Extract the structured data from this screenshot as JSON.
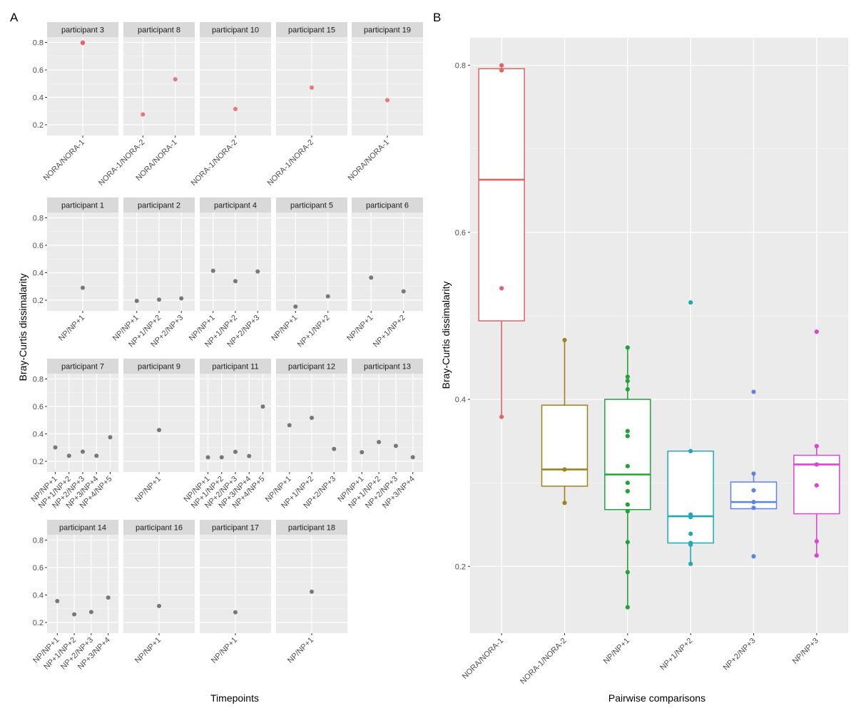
{
  "chart_data": [
    {
      "panel": "A",
      "type": "scatter",
      "faceted": true,
      "xlabel": "Timepoints",
      "ylabel": "Bray-Curtis dissimalarity",
      "ylim": [
        0.122,
        0.839
      ],
      "yticks": [
        0.2,
        0.4,
        0.6,
        0.8
      ],
      "ytick_labels": [
        "0.2",
        "0.4",
        "0.6",
        "0.8"
      ],
      "grid": true,
      "colors": {
        "nora": "#E8585E",
        "np": "#595959"
      },
      "facets": [
        {
          "title": "participant 3",
          "group": "nora",
          "categories": [
            "NORA/NORA-1"
          ],
          "points": [
            {
              "x": "NORA/NORA-1",
              "y": 0.8
            },
            {
              "x": "NORA/NORA-1",
              "y": 0.795
            }
          ]
        },
        {
          "title": "participant 8",
          "group": "nora",
          "categories": [
            "NORA-1/NORA-2",
            "NORA/NORA-1"
          ],
          "points": [
            {
              "x": "NORA-1/NORA-2",
              "y": 0.275
            },
            {
              "x": "NORA/NORA-1",
              "y": 0.532
            }
          ]
        },
        {
          "title": "participant 10",
          "group": "nora",
          "categories": [
            "NORA-1/NORA-2"
          ],
          "points": [
            {
              "x": "NORA-1/NORA-2",
              "y": 0.315
            }
          ]
        },
        {
          "title": "participant 15",
          "group": "nora",
          "categories": [
            "NORA-1/NORA-2"
          ],
          "points": [
            {
              "x": "NORA-1/NORA-2",
              "y": 0.471
            }
          ]
        },
        {
          "title": "participant 19",
          "group": "nora",
          "categories": [
            "NORA/NORA-1"
          ],
          "points": [
            {
              "x": "NORA/NORA-1",
              "y": 0.379
            }
          ]
        },
        {
          "title": "participant 1",
          "group": "np",
          "categories": [
            "NP/NP+1"
          ],
          "points": [
            {
              "x": "NP/NP+1",
              "y": 0.29
            }
          ]
        },
        {
          "title": "participant 2",
          "group": "np",
          "categories": [
            "NP/NP+1",
            "NP+1/NP+2",
            "NP+2/NP+3"
          ],
          "points": [
            {
              "x": "NP/NP+1",
              "y": 0.195
            },
            {
              "x": "NP+1/NP+2",
              "y": 0.204
            },
            {
              "x": "NP+2/NP+3",
              "y": 0.213
            }
          ]
        },
        {
          "title": "participant 4",
          "group": "np",
          "categories": [
            "NP/NP+1",
            "NP+1/NP+2",
            "NP+2/NP+3"
          ],
          "points": [
            {
              "x": "NP/NP+1",
              "y": 0.414
            },
            {
              "x": "NP+1/NP+2",
              "y": 0.338
            },
            {
              "x": "NP+2/NP+3",
              "y": 0.409
            }
          ]
        },
        {
          "title": "participant 5",
          "group": "np",
          "categories": [
            "NP/NP+1",
            "NP+1/NP+2"
          ],
          "points": [
            {
              "x": "NP/NP+1",
              "y": 0.153
            },
            {
              "x": "NP+1/NP+2",
              "y": 0.228
            }
          ]
        },
        {
          "title": "participant 6",
          "group": "np",
          "categories": [
            "NP/NP+1",
            "NP+1/NP+2"
          ],
          "points": [
            {
              "x": "NP/NP+1",
              "y": 0.364
            },
            {
              "x": "NP+1/NP+2",
              "y": 0.264
            }
          ]
        },
        {
          "title": "participant 7",
          "group": "np",
          "categories": [
            "NP/NP+1",
            "NP+1/NP+2",
            "NP+2/NP+3",
            "NP+3/NP+4",
            "NP+4/NP+5"
          ],
          "points": [
            {
              "x": "NP/NP+1",
              "y": 0.301
            },
            {
              "x": "NP+1/NP+2",
              "y": 0.24
            },
            {
              "x": "NP+2/NP+3",
              "y": 0.27
            },
            {
              "x": "NP+3/NP+4",
              "y": 0.24
            },
            {
              "x": "NP+4/NP+5",
              "y": 0.375
            }
          ]
        },
        {
          "title": "participant 9",
          "group": "np",
          "categories": [
            "NP/NP+1"
          ],
          "points": [
            {
              "x": "NP/NP+1",
              "y": 0.428
            }
          ]
        },
        {
          "title": "participant 11",
          "group": "np",
          "categories": [
            "NP/NP+1",
            "NP+1/NP+2",
            "NP+2/NP+3",
            "NP+3/NP+4",
            "NP+4/NP+5"
          ],
          "points": [
            {
              "x": "NP/NP+1",
              "y": 0.229
            },
            {
              "x": "NP+1/NP+2",
              "y": 0.229
            },
            {
              "x": "NP+2/NP+3",
              "y": 0.269
            },
            {
              "x": "NP+3/NP+4",
              "y": 0.238
            },
            {
              "x": "NP+4/NP+5",
              "y": 0.599
            }
          ]
        },
        {
          "title": "participant 12",
          "group": "np",
          "categories": [
            "NP/NP+1",
            "NP+1/NP+2",
            "NP+2/NP+3"
          ],
          "points": [
            {
              "x": "NP/NP+1",
              "y": 0.463
            },
            {
              "x": "NP+1/NP+2",
              "y": 0.517
            },
            {
              "x": "NP+2/NP+3",
              "y": 0.29
            }
          ]
        },
        {
          "title": "participant 13",
          "group": "np",
          "categories": [
            "NP/NP+1",
            "NP+1/NP+2",
            "NP+2/NP+3",
            "NP+3/NP+4"
          ],
          "points": [
            {
              "x": "NP/NP+1",
              "y": 0.266
            },
            {
              "x": "NP+1/NP+2",
              "y": 0.34
            },
            {
              "x": "NP+2/NP+3",
              "y": 0.312
            },
            {
              "x": "NP+3/NP+4",
              "y": 0.23
            }
          ]
        },
        {
          "title": "participant 14",
          "group": "np",
          "categories": [
            "NP/NP+1",
            "NP+1/NP+2",
            "NP+2/NP+3",
            "NP+3/NP+4"
          ],
          "points": [
            {
              "x": "NP/NP+1",
              "y": 0.356
            },
            {
              "x": "NP+1/NP+2",
              "y": 0.259
            },
            {
              "x": "NP+2/NP+3",
              "y": 0.276
            },
            {
              "x": "NP+3/NP+4",
              "y": 0.381
            }
          ]
        },
        {
          "title": "participant 16",
          "group": "np",
          "categories": [
            "NP/NP+1"
          ],
          "points": [
            {
              "x": "NP/NP+1",
              "y": 0.32
            }
          ]
        },
        {
          "title": "participant 17",
          "group": "np",
          "categories": [
            "NP/NP+1"
          ],
          "points": [
            {
              "x": "NP/NP+1",
              "y": 0.274
            }
          ]
        },
        {
          "title": "participant 18",
          "group": "np",
          "categories": [
            "NP/NP+1"
          ],
          "points": [
            {
              "x": "NP/NP+1",
              "y": 0.424
            }
          ]
        }
      ]
    },
    {
      "panel": "B",
      "type": "box",
      "xlabel": "Pairwise comparisons",
      "ylabel": "Bray-Curtis dissimalarity",
      "ylim": [
        0.12,
        0.833
      ],
      "yticks": [
        0.2,
        0.4,
        0.6,
        0.8
      ],
      "ytick_labels": [
        "0.2",
        "0.4",
        "0.6",
        "0.8"
      ],
      "grid": true,
      "categories": [
        "NORA/NORA-1",
        "NORA-1/NORA-2",
        "NP/NP+1",
        "NP+1/NP+2",
        "NP+2/NP+3",
        "NP/NP+3"
      ],
      "series": [
        {
          "name": "NORA/NORA-1",
          "color": "#E06666",
          "q1": 0.494,
          "median": 0.663,
          "q3": 0.796,
          "whisker_low": 0.379,
          "whisker_high": 0.8,
          "points": [
            0.8,
            0.794,
            0.533,
            0.379
          ]
        },
        {
          "name": "NORA-1/NORA-2",
          "color": "#9A8420",
          "q1": 0.296,
          "median": 0.316,
          "q3": 0.393,
          "whisker_low": 0.276,
          "whisker_high": 0.471,
          "points": [
            0.471,
            0.316,
            0.276
          ]
        },
        {
          "name": "NP/NP+1",
          "color": "#22A33A",
          "q1": 0.268,
          "median": 0.31,
          "q3": 0.4,
          "whisker_low": 0.151,
          "whisker_high": 0.462,
          "points": [
            0.462,
            0.427,
            0.422,
            0.412,
            0.362,
            0.356,
            0.32,
            0.3,
            0.29,
            0.274,
            0.266,
            0.229,
            0.193,
            0.151
          ]
        },
        {
          "name": "NP+1/NP+2",
          "color": "#1FA9B3",
          "q1": 0.228,
          "median": 0.26,
          "q3": 0.338,
          "whisker_low": 0.203,
          "whisker_high": 0.338,
          "points": [
            0.516,
            0.338,
            0.262,
            0.259,
            0.239,
            0.228,
            0.226,
            0.203
          ]
        },
        {
          "name": "NP+2/NP+3",
          "color": "#5B84E6",
          "q1": 0.269,
          "median": 0.277,
          "q3": 0.301,
          "whisker_low": 0.269,
          "whisker_high": 0.311,
          "points": [
            0.409,
            0.311,
            0.291,
            0.277,
            0.27,
            0.212
          ]
        },
        {
          "name": "NP/NP+3",
          "color": "#DA45D6",
          "q1": 0.263,
          "median": 0.322,
          "q3": 0.333,
          "whisker_low": 0.213,
          "whisker_high": 0.344,
          "points": [
            0.481,
            0.344,
            0.322,
            0.297,
            0.23,
            0.213
          ]
        }
      ]
    }
  ],
  "labels": {
    "panel_a": "A",
    "panel_b": "B"
  }
}
